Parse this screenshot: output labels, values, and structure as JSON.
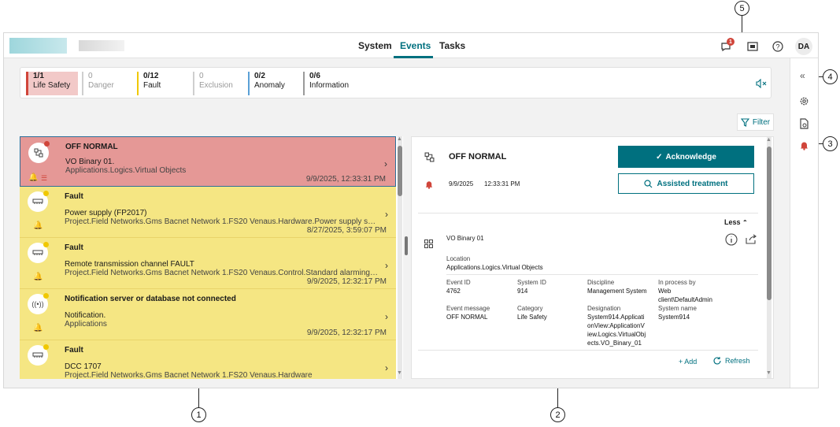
{
  "header": {
    "tabs": [
      {
        "label": "System"
      },
      {
        "label": "Events",
        "active": true
      },
      {
        "label": "Tasks"
      }
    ],
    "notification_badge": "1",
    "avatar": "DA"
  },
  "summary": [
    {
      "count": "1/1",
      "label": "Life Safety",
      "color": "#d0453a",
      "active": true
    },
    {
      "count": "0",
      "label": "Danger",
      "color": "#cfcfcf"
    },
    {
      "count": "0/12",
      "label": "Fault",
      "color": "#f0c800"
    },
    {
      "count": "0",
      "label": "Exclusion",
      "color": "#cfcfcf"
    },
    {
      "count": "0/2",
      "label": "Anomaly",
      "color": "#5aa0d6"
    },
    {
      "count": "0/6",
      "label": "Information",
      "color": "#9a9a9a"
    }
  ],
  "filter_label": "Filter",
  "events": [
    {
      "title": "OFF NORMAL",
      "line1": "VO Binary 01.",
      "line2": "Applications.Logics.Virtual Objects",
      "timestamp": "9/9/2025, 12:33:31 PM",
      "icon": "logic-icon",
      "bg": "#e59896"
    },
    {
      "title": "Fault",
      "line1": "Power supply (FP2017)",
      "line2": "Project.Field Networks.Gms Bacnet Network 1.FS20 Venaus.Hardware.Power supply supervisio...",
      "timestamp": "8/27/2025, 3:59:07 PM",
      "icon": "device-icon",
      "bg": "#f5e683"
    },
    {
      "title": "Fault",
      "line1": "Remote transmission channel FAULT",
      "line2": "Project.Field Networks.Gms Bacnet Network 1.FS20 Venaus.Control.Standard alarming controls",
      "timestamp": "9/9/2025, 12:32:17 PM",
      "icon": "device-icon",
      "bg": "#f5e683"
    },
    {
      "title": "Notification server or database not connected",
      "line1": "Notification.",
      "line2": "Applications",
      "timestamp": "9/9/2025, 12:32:17 PM",
      "icon": "broadcast-icon",
      "bg": "#f5e683"
    },
    {
      "title": "Fault",
      "line1": "DCC 1707",
      "line2": "Project.Field Networks.Gms Bacnet Network 1.FS20 Venaus.Hardware",
      "timestamp": "",
      "icon": "device-icon",
      "bg": "#f5e683"
    }
  ],
  "detail": {
    "title": "OFF NORMAL",
    "date": "9/9/2025",
    "time": "12:33:31 PM",
    "acknowledge": "Acknowledge",
    "assisted": "Assisted treatment",
    "less": "Less",
    "object_name": "VO Binary 01",
    "location_label": "Location",
    "location_value": "Applications.Logics.Virtual Objects",
    "fields": {
      "event_id_label": "Event ID",
      "event_id": "4762",
      "system_id_label": "System ID",
      "system_id": "914",
      "discipline_label": "Discipline",
      "discipline": "Management System",
      "in_process_label": "In process by",
      "in_process_1": "Web",
      "in_process_2": "client\\DefaultAdmin",
      "event_message_label": "Event message",
      "event_message": "OFF NORMAL",
      "category_label": "Category",
      "category": "Life Safety",
      "designation_label": "Designation",
      "designation_1": "System914.Applicati",
      "designation_2": "onView:ApplicationV",
      "designation_3": "iew.Logics.VirtualObj",
      "designation_4": "ects.VO_Binary_01",
      "system_name_label": "System name",
      "system_name": "System914"
    },
    "add": "Add",
    "refresh": "Refresh"
  },
  "callouts": [
    "1",
    "2",
    "3",
    "4",
    "5"
  ]
}
